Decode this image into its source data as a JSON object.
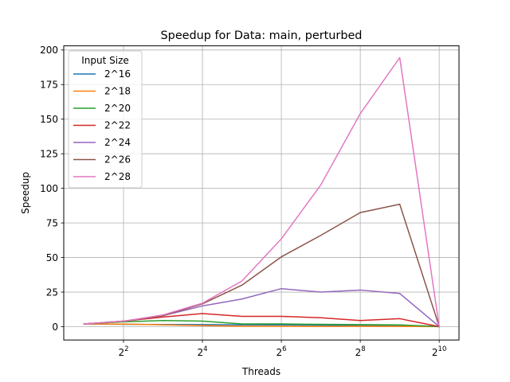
{
  "chart_data": {
    "type": "line",
    "title": "Speedup for Data: main, perturbed",
    "xlabel": "Threads",
    "ylabel": "Speedup",
    "x_scale": "log2",
    "xlim": [
      1.4,
      1450
    ],
    "ylim": [
      -9.6,
      203
    ],
    "grid": true,
    "legend_title": "Input Size",
    "legend_position": "upper-left",
    "x_ticks": [
      {
        "value": 4,
        "base": "2",
        "exp": "2"
      },
      {
        "value": 16,
        "base": "2",
        "exp": "4"
      },
      {
        "value": 64,
        "base": "2",
        "exp": "6"
      },
      {
        "value": 256,
        "base": "2",
        "exp": "8"
      },
      {
        "value": 1024,
        "base": "2",
        "exp": "10"
      }
    ],
    "y_ticks": [
      0,
      25,
      50,
      75,
      100,
      125,
      150,
      175,
      200
    ],
    "x": [
      2,
      4,
      8,
      16,
      32,
      64,
      128,
      256,
      512,
      1024
    ],
    "series": [
      {
        "name": "2^16",
        "color": "#1f77b4",
        "values": [
          2.0,
          1.7,
          1.6,
          1.5,
          1.4,
          1.3,
          1.1,
          0.9,
          0.8,
          0.1
        ]
      },
      {
        "name": "2^18",
        "color": "#ff7f0e",
        "values": [
          2.0,
          1.9,
          1.4,
          0.8,
          0.4,
          0.3,
          0.2,
          0.3,
          0.2,
          0.1
        ]
      },
      {
        "name": "2^20",
        "color": "#2ca02c",
        "values": [
          2.0,
          3.5,
          4.5,
          4.0,
          2.0,
          2.0,
          1.7,
          1.5,
          1.3,
          0.1
        ]
      },
      {
        "name": "2^22",
        "color": "#d62728",
        "values": [
          2.0,
          4.0,
          7.0,
          9.5,
          7.5,
          7.5,
          6.5,
          4.5,
          5.8,
          0.1
        ]
      },
      {
        "name": "2^24",
        "color": "#9467bd",
        "values": [
          2.0,
          4.0,
          8.0,
          15.0,
          20.0,
          27.5,
          25.0,
          26.5,
          24.0,
          0.1
        ]
      },
      {
        "name": "2^26",
        "color": "#8c564b",
        "values": [
          2.0,
          4.0,
          8.0,
          16.5,
          30.0,
          50.5,
          66.0,
          82.5,
          88.5,
          0.1
        ]
      },
      {
        "name": "2^28",
        "color": "#e377c2",
        "values": [
          2.0,
          4.0,
          8.5,
          17.0,
          33.0,
          63.5,
          102.5,
          154.0,
          194.5,
          0.1
        ]
      }
    ]
  }
}
